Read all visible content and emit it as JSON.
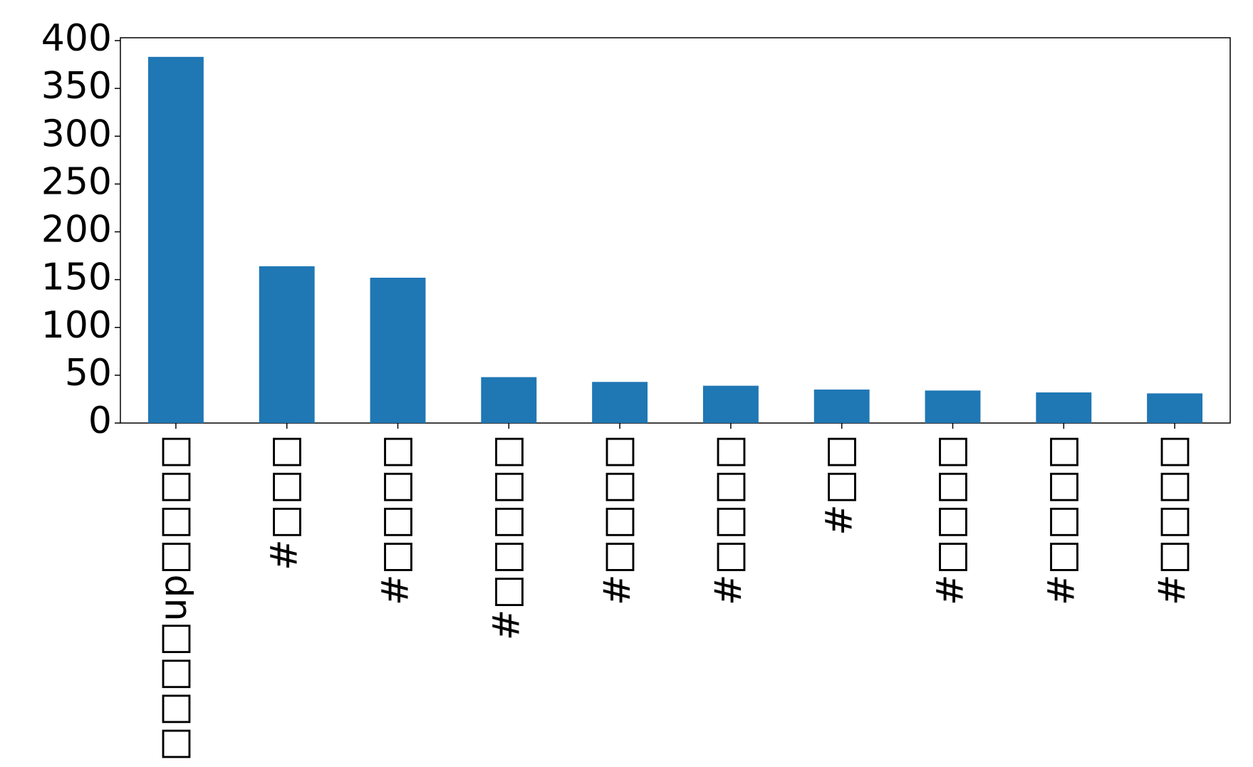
{
  "chart_data": {
    "type": "bar",
    "categories": [
      "#□□□□up□□□□",
      "#□□□",
      "#□□□□",
      "#□□□□□",
      "#□□□□",
      "#□□□□",
      "#□□",
      "#□□□□",
      "#□□□□",
      "#□□□□"
    ],
    "values": [
      383,
      164,
      152,
      48,
      43,
      39,
      35,
      34,
      32,
      31
    ],
    "color": "#1f77b4",
    "ylim": [
      0,
      403
    ],
    "yticks": [
      0,
      50,
      100,
      150,
      200,
      250,
      300,
      350,
      400
    ],
    "grid": false
  }
}
